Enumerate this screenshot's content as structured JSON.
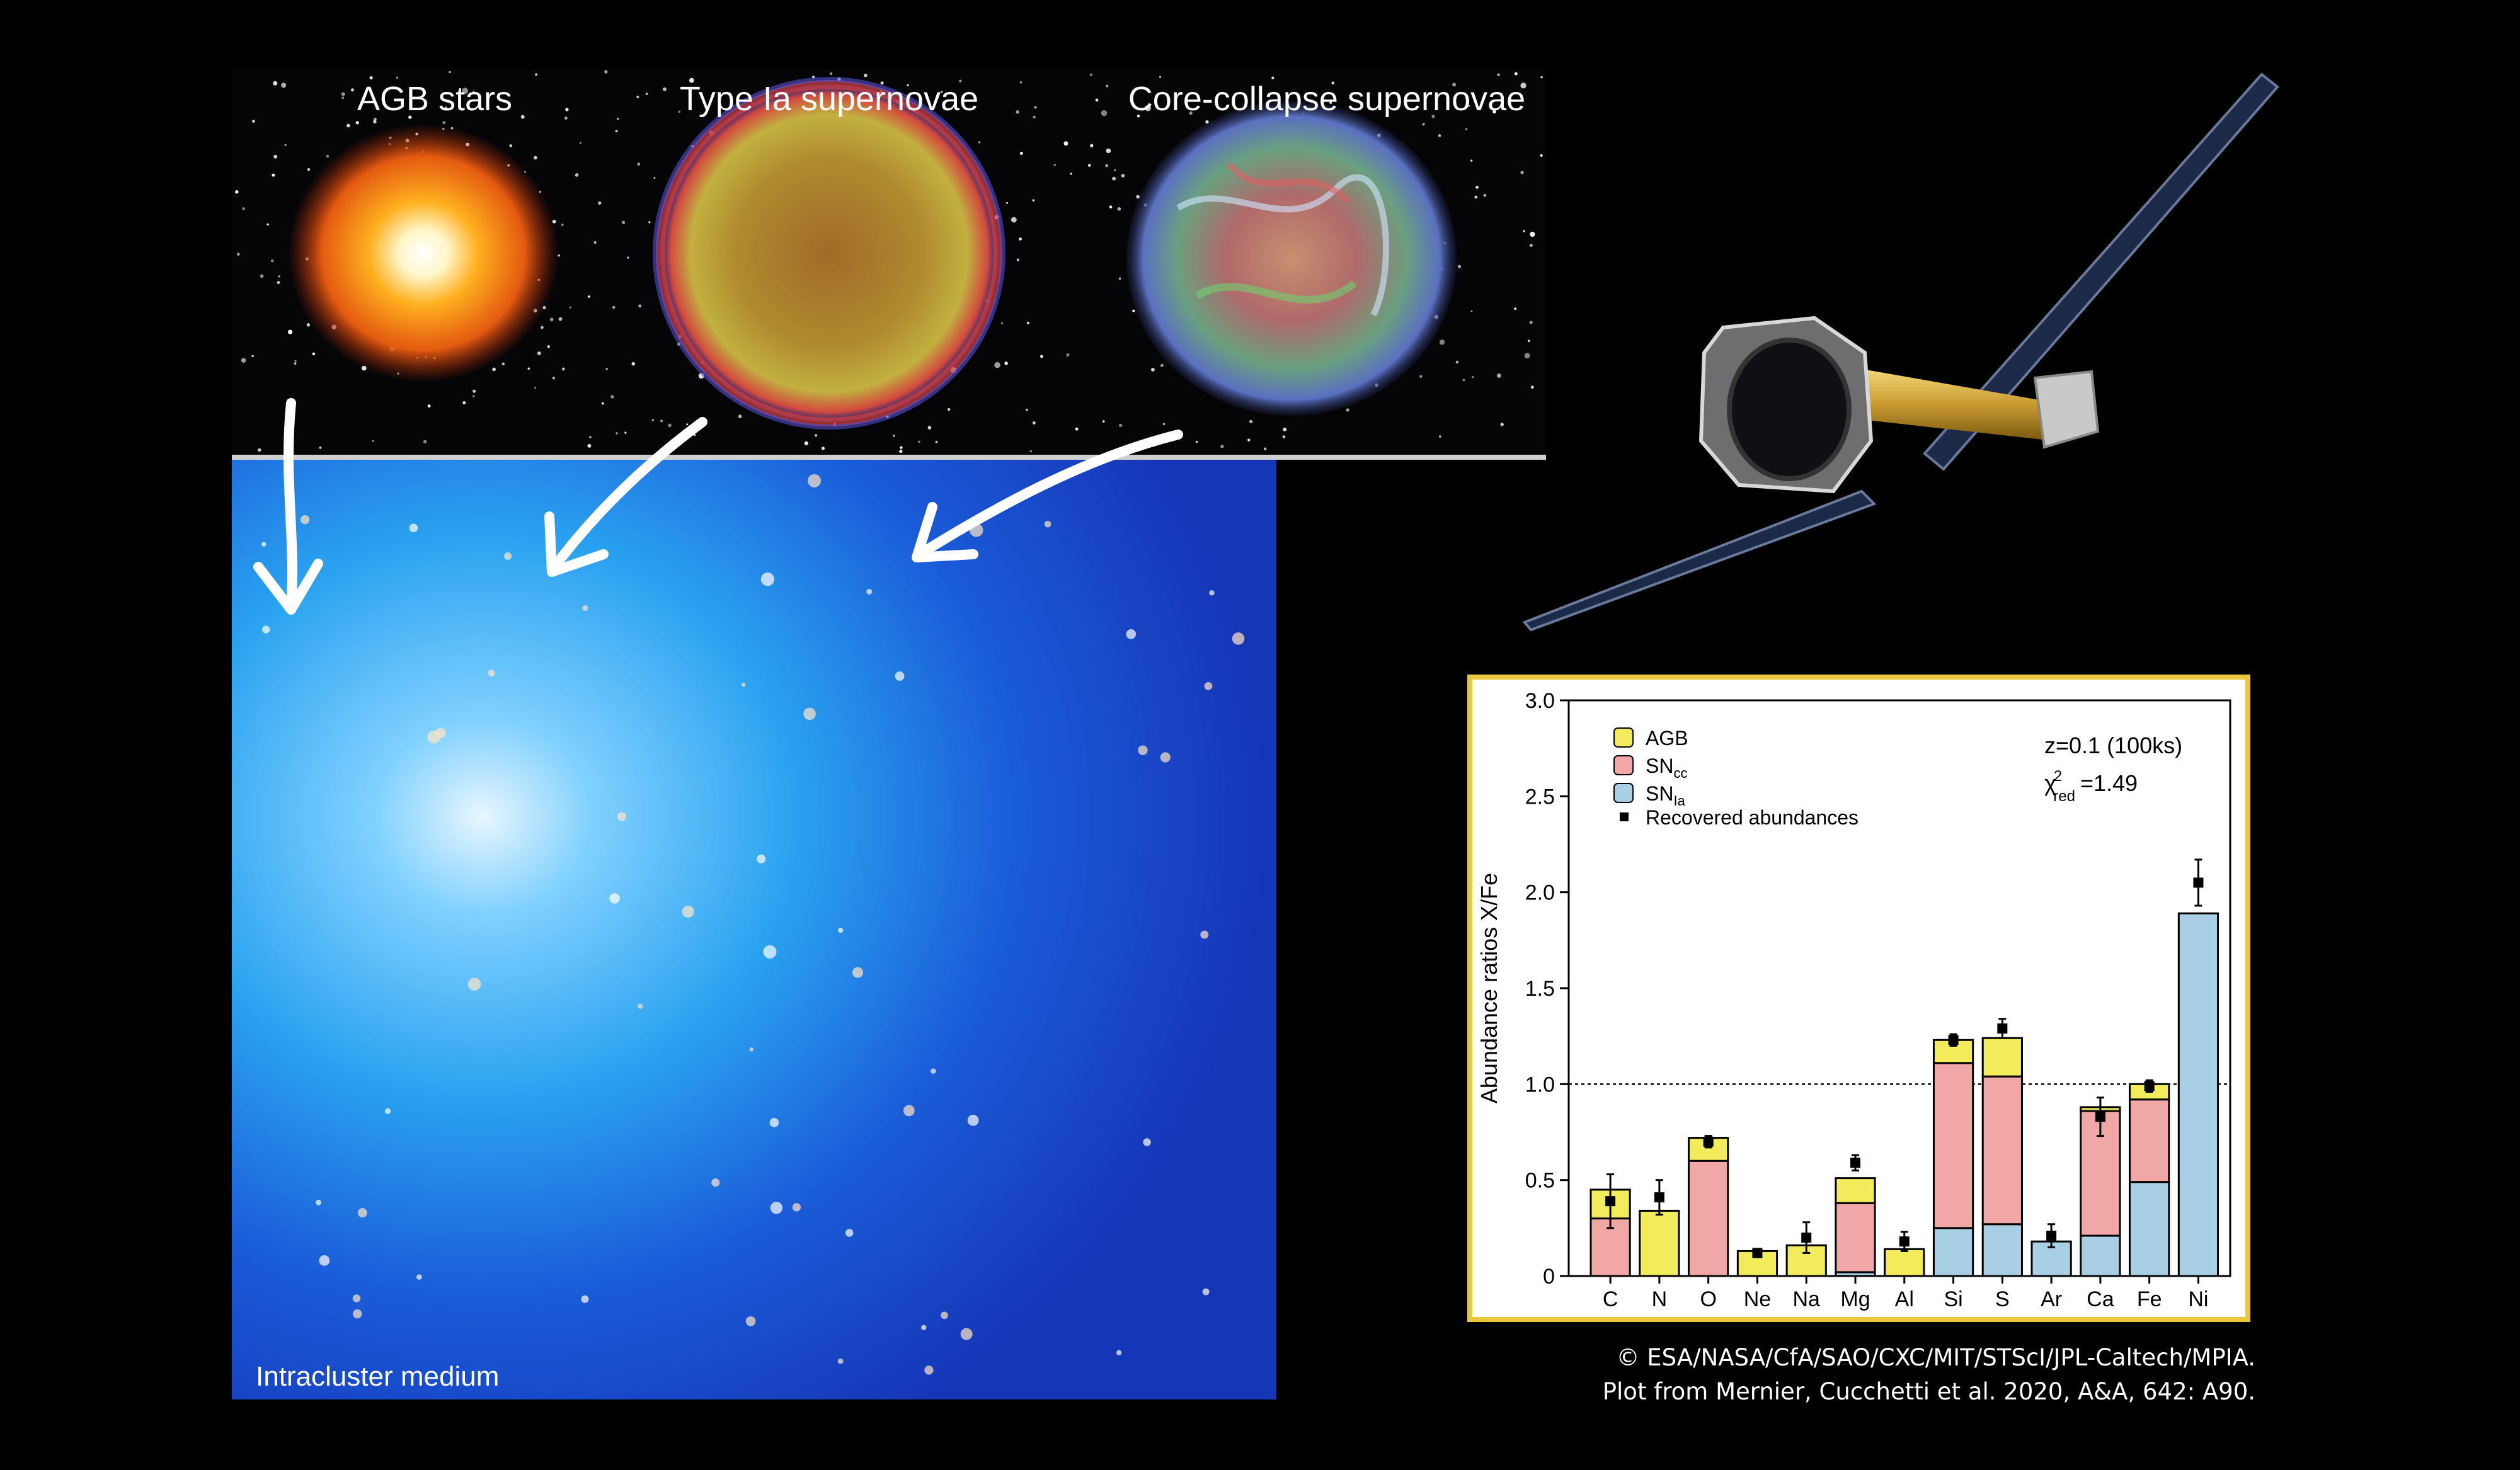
{
  "labels": {
    "agb": "AGB stars",
    "type_ia": "Type Ia supernovae",
    "core_collapse": "Core-collapse supernovae",
    "icm": "Intracluster medium"
  },
  "credits": {
    "line1": "© ESA/NASA/CfA/SAO/CXC/MIT/STScI/JPL-Caltech/MPIA.",
    "line2": "Plot from Mernier, Cucchetti et al. 2020, A&A, 642: A90."
  },
  "colors": {
    "agb": "#f2ec5c",
    "sncc": "#f2a7a7",
    "snia": "#a8cfe3",
    "frame": "#e8c73a"
  },
  "chart_data": {
    "type": "bar",
    "stacked": true,
    "ylabel": "Abundance ratios X/Fe",
    "ylim": [
      0,
      3.0
    ],
    "yticks": [
      "0",
      "0.5",
      "1.0",
      "1.5",
      "2.0",
      "2.5",
      "3.0"
    ],
    "reference_line": 1.0,
    "categories": [
      "C",
      "N",
      "O",
      "Ne",
      "Na",
      "Mg",
      "Al",
      "Si",
      "S",
      "Ar",
      "Ca",
      "Fe",
      "Ni"
    ],
    "series": [
      {
        "name": "SN",
        "sub": "Ia",
        "values": [
          0.0,
          0.0,
          0.0,
          0.0,
          0.0,
          0.02,
          0.0,
          0.25,
          0.27,
          0.18,
          0.21,
          0.49,
          1.89
        ]
      },
      {
        "name": "SN",
        "sub": "cc",
        "values": [
          0.3,
          0.0,
          0.6,
          0.0,
          0.0,
          0.36,
          0.0,
          0.86,
          0.77,
          0.0,
          0.65,
          0.43,
          0.0
        ]
      },
      {
        "name": "AGB",
        "values": [
          0.15,
          0.34,
          0.12,
          0.13,
          0.16,
          0.13,
          0.14,
          0.12,
          0.2,
          0.0,
          0.02,
          0.08,
          0.0
        ]
      }
    ],
    "recovered": {
      "name": "Recovered abundances",
      "values": [
        0.39,
        0.41,
        0.7,
        0.12,
        0.2,
        0.59,
        0.18,
        1.23,
        1.29,
        0.21,
        0.83,
        0.99,
        2.05
      ],
      "errors": [
        0.14,
        0.09,
        0.03,
        0.02,
        0.08,
        0.04,
        0.05,
        0.03,
        0.05,
        0.06,
        0.1,
        0.03,
        0.12
      ]
    },
    "annotation": {
      "z": "z=0.1 (100ks)",
      "chi_main": "χ",
      "chi_sup": "2",
      "chi_sub": "red",
      "chi_val": "=1.49"
    },
    "legend_position": "top-left"
  }
}
